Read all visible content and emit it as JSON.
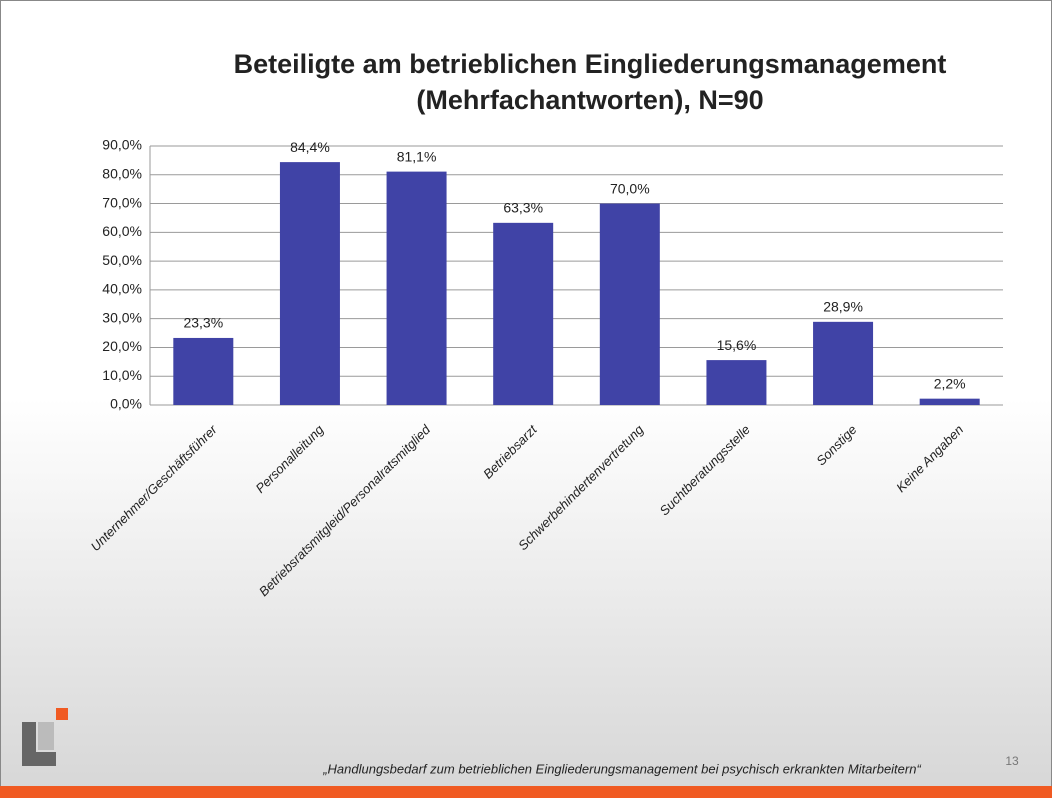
{
  "chart_data": {
    "type": "bar",
    "title": [
      "Beteiligte am betrieblichen Eingliederungsmanagement",
      "(Mehrfachantworten), N=90"
    ],
    "categories": [
      "Unternehmer/Geschäftsführer",
      "Personalleitung",
      "Betriebsratsmitgleid/Personalratsmitglied",
      "Betriebsarzt",
      "Schwerbehindertenvertretung",
      "Suchtberatungsstelle",
      "Sonstige",
      "Keine Angaben"
    ],
    "values": [
      23.3,
      84.4,
      81.1,
      63.3,
      70.0,
      15.6,
      28.9,
      2.2
    ],
    "value_labels": [
      "23,3%",
      "84,4%",
      "81,1%",
      "63,3%",
      "70,0%",
      "15,6%",
      "28,9%",
      "2,2%"
    ],
    "color": "#4043a6",
    "ylim": [
      0,
      90
    ],
    "yticks": [
      {
        "value": 0,
        "label": "0,0%"
      },
      {
        "value": 10,
        "label": "10,0%"
      },
      {
        "value": 20,
        "label": "20,0%"
      },
      {
        "value": 30,
        "label": "30,0%"
      },
      {
        "value": 40,
        "label": "40,0%"
      },
      {
        "value": 50,
        "label": "50,0%"
      },
      {
        "value": 60,
        "label": "60,0%"
      },
      {
        "value": 70,
        "label": "70,0%"
      },
      {
        "value": 80,
        "label": "80,0%"
      },
      {
        "value": 90,
        "label": "90,0%"
      }
    ],
    "grid": true
  },
  "footer": {
    "source": "„Handlungsbedarf zum betrieblichen Eingliederungsmanagement bei psychisch erkrankten Mitarbeitern“",
    "page": "13"
  }
}
